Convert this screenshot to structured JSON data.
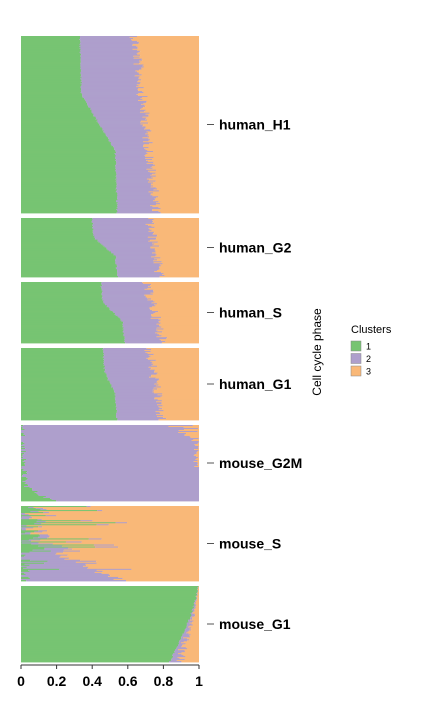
{
  "chart_data": {
    "type": "stacked-bar-structure",
    "orientation": "horizontal",
    "ylabel": "Cell cycle phase",
    "xlim": [
      0,
      1
    ],
    "x_ticks": [
      "0",
      "0.2",
      "0.4",
      "0.6",
      "0.8",
      "1"
    ],
    "legend": {
      "title": "Clusters",
      "placement": "right",
      "entries": [
        "1",
        "2",
        "3"
      ]
    },
    "colors": {
      "1": "#77c472",
      "2": "#ae9fcc",
      "3": "#f9b878"
    },
    "panels": [
      {
        "name": "human_H1",
        "cells": 180,
        "cluster1_share": {
          "start": 0.33,
          "end": 0.54,
          "shape": "step"
        },
        "cluster3_share": {
          "start": 0.36,
          "end": 0.24
        },
        "noise": 0.03
      },
      {
        "name": "human_G2",
        "cells": 60,
        "cluster1_share": {
          "start": 0.4,
          "end": 0.54,
          "shape": "step"
        },
        "cluster3_share": {
          "start": 0.28,
          "end": 0.22
        },
        "noise": 0.03
      },
      {
        "name": "human_S",
        "cells": 63,
        "cluster1_share": {
          "start": 0.45,
          "end": 0.58,
          "shape": "step"
        },
        "cluster3_share": {
          "start": 0.3,
          "end": 0.2
        },
        "noise": 0.03
      },
      {
        "name": "human_G1",
        "cells": 73,
        "cluster1_share": {
          "start": 0.46,
          "end": 0.54,
          "shape": "step"
        },
        "cluster3_share": {
          "start": 0.28,
          "end": 0.21
        },
        "noise": 0.03
      },
      {
        "name": "mouse_G2M",
        "cells": 76,
        "cluster1_share": {
          "start": 0.0,
          "end": 0.18,
          "shape": "late"
        },
        "cluster3_share": {
          "start": 0.0,
          "end": 0.2,
          "shape": "early"
        },
        "noise": 0.04
      },
      {
        "name": "mouse_S",
        "cells": 74,
        "cluster1_share": {
          "start": 0.36,
          "end": 0.01,
          "shape": "sparse"
        },
        "cluster2_share": {
          "start": 0.0,
          "end": 0.55
        },
        "noise": 0.06
      },
      {
        "name": "mouse_G1",
        "cells": 77,
        "cluster1_share": {
          "start": 1.0,
          "end": 0.84,
          "shape": "smooth"
        },
        "cluster3_share": {
          "start": 0.0,
          "end": 0.12
        },
        "noise": 0.02
      }
    ]
  }
}
